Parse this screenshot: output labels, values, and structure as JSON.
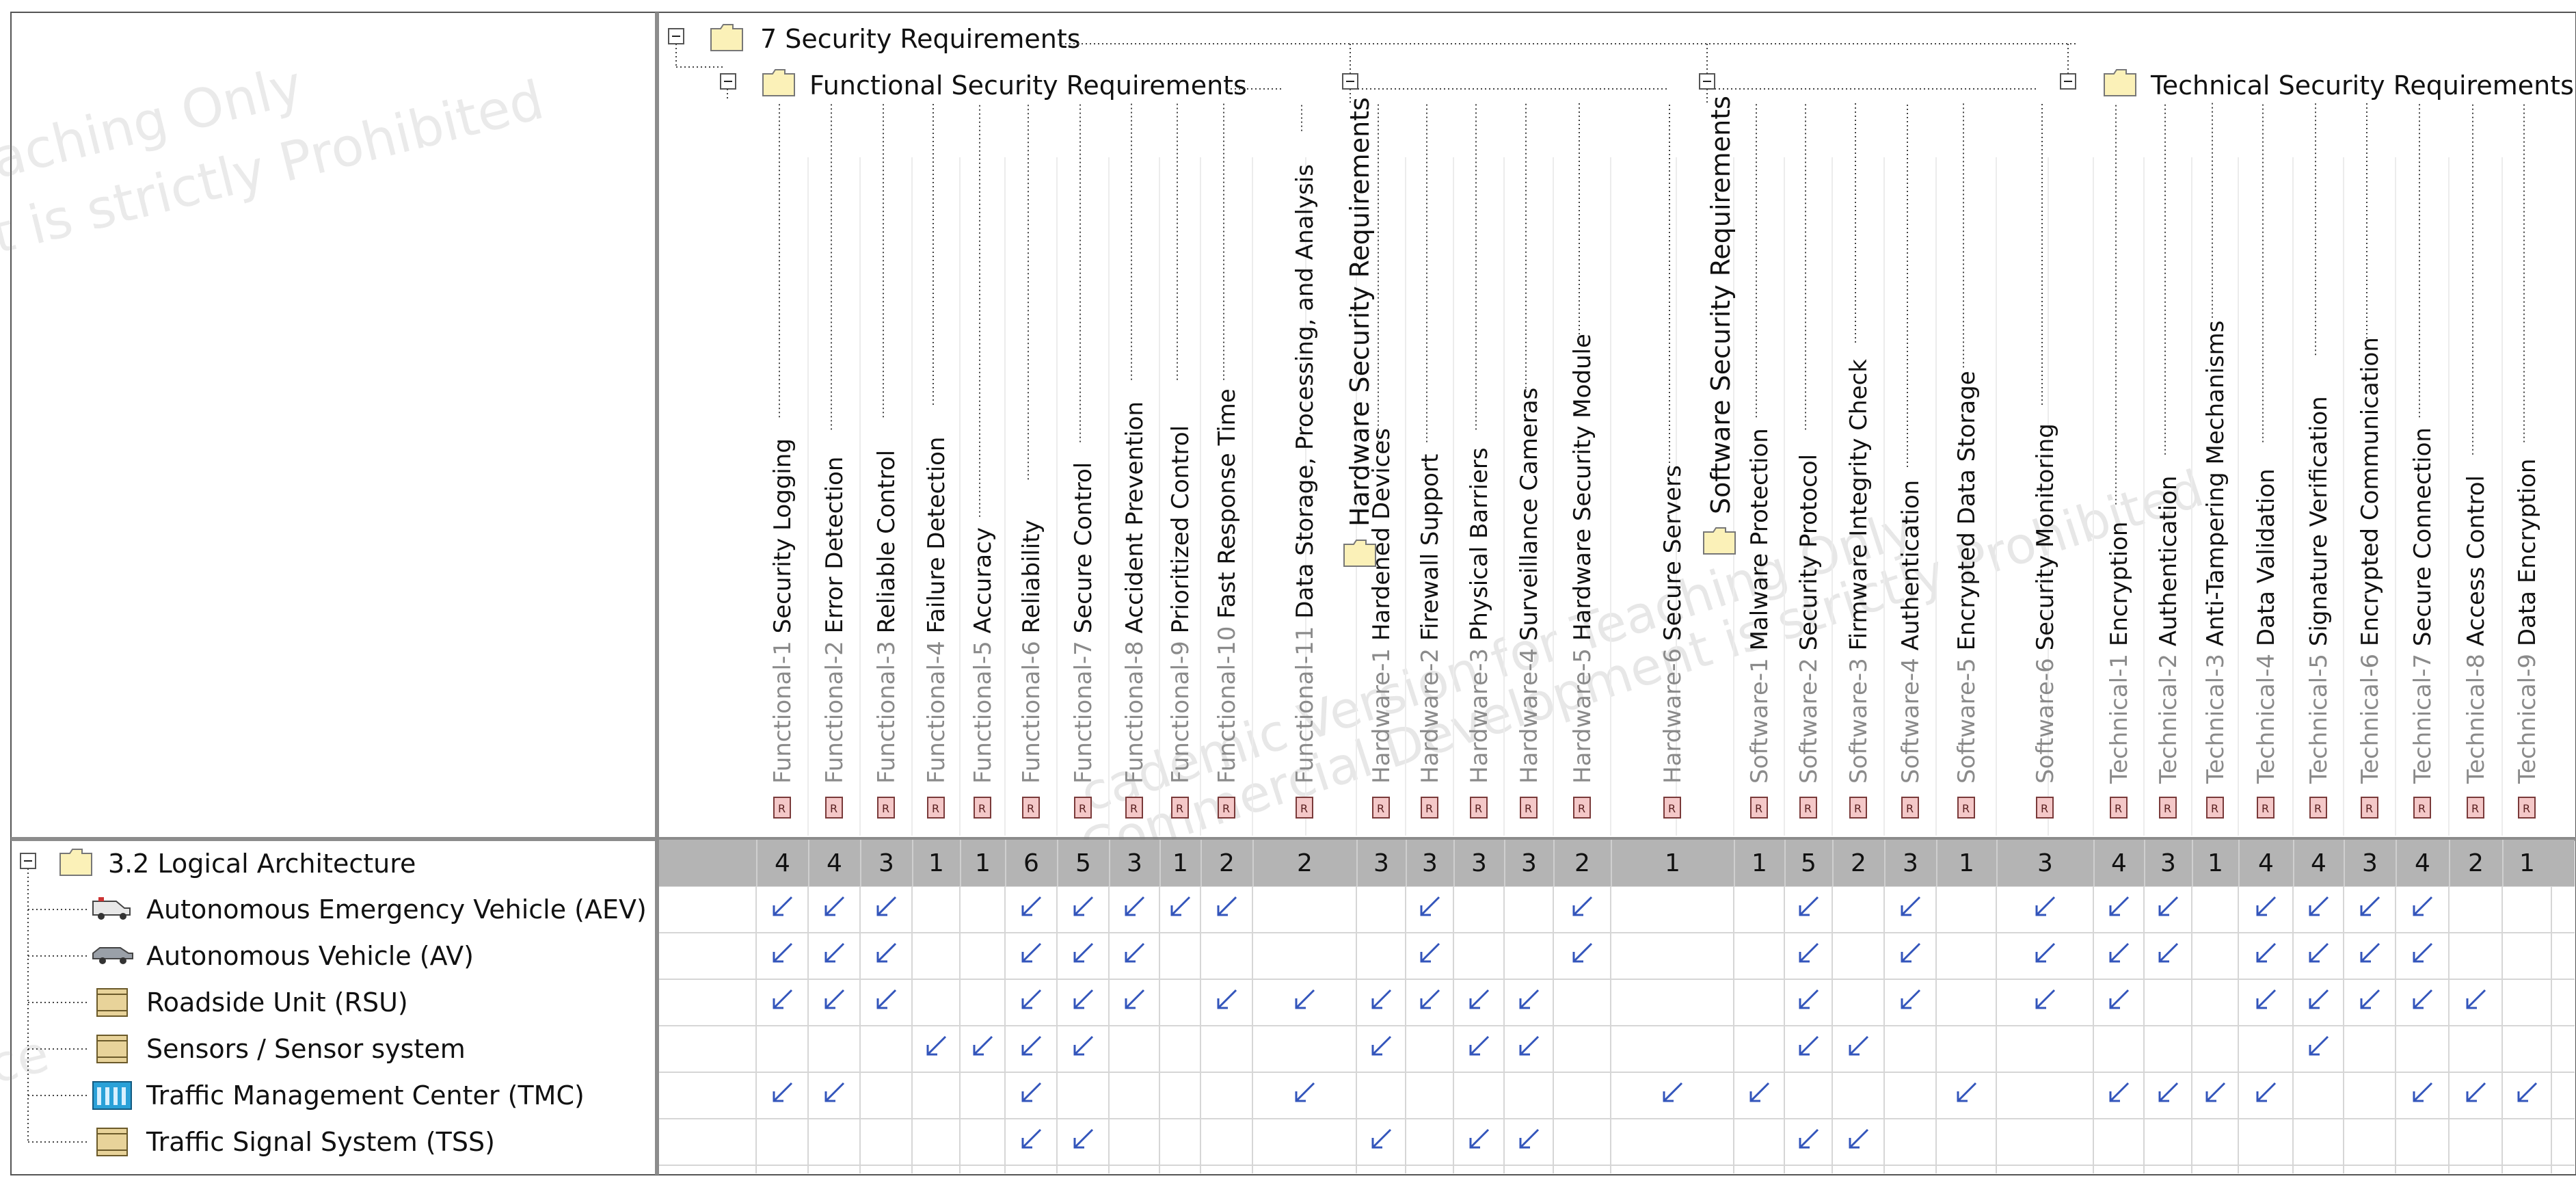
{
  "app": {
    "watermark_left_1": "aching Only",
    "watermark_left_2": "t is strictly Prohibited",
    "watermark_center_1": "cademic Version for Teaching Only",
    "watermark_center_2": "Commercial Development is strictly Prohibited",
    "watermark_row": "ce"
  },
  "matrix": {
    "root_folder": "7 Security Requirements",
    "groups": [
      {
        "label": "Functional Security Requirements",
        "vertical": false
      },
      {
        "label": "Hardware Security Requirements",
        "vertical": true
      },
      {
        "label": "Software Security Requirements",
        "vertical": true
      },
      {
        "label": "Technical Security Requirements",
        "vertical": false
      }
    ],
    "expander_symbol": "⊟",
    "requirement_badge": "R",
    "columns": [
      {
        "id": "Functional-1",
        "name": "Security Logging",
        "group": 0
      },
      {
        "id": "Functional-2",
        "name": "Error Detection",
        "group": 0
      },
      {
        "id": "Functional-3",
        "name": "Reliable Control",
        "group": 0
      },
      {
        "id": "Functional-4",
        "name": "Failure Detection",
        "group": 0
      },
      {
        "id": "Functional-5",
        "name": "Accuracy",
        "group": 0
      },
      {
        "id": "Functional-6",
        "name": "Reliability",
        "group": 0
      },
      {
        "id": "Functional-7",
        "name": "Secure Control",
        "group": 0
      },
      {
        "id": "Functional-8",
        "name": "Accident Prevention",
        "group": 0
      },
      {
        "id": "Functional-9",
        "name": "Prioritized Control",
        "group": 0
      },
      {
        "id": "Functional-10",
        "name": "Fast Response Time",
        "group": 0
      },
      {
        "id": "Functional-11",
        "name": "Data Storage, Processing, and Analysis",
        "group": 0
      },
      {
        "id": "Hardware-1",
        "name": "Hardened Devices",
        "group": 1
      },
      {
        "id": "Hardware-2",
        "name": "Firewall Support",
        "group": 1
      },
      {
        "id": "Hardware-3",
        "name": "Physical Barriers",
        "group": 1
      },
      {
        "id": "Hardware-4",
        "name": "Surveillance Cameras",
        "group": 1
      },
      {
        "id": "Hardware-5",
        "name": "Hardware Security Module",
        "group": 1
      },
      {
        "id": "Hardware-6",
        "name": "Secure Servers",
        "group": 1
      },
      {
        "id": "Software-1",
        "name": "Malware Protection",
        "group": 2
      },
      {
        "id": "Software-2",
        "name": "Security Protocol",
        "group": 2
      },
      {
        "id": "Software-3",
        "name": "Firmware Integrity Check",
        "group": 2
      },
      {
        "id": "Software-4",
        "name": "Authentication",
        "group": 2
      },
      {
        "id": "Software-5",
        "name": "Encrypted Data Storage",
        "group": 2
      },
      {
        "id": "Software-6",
        "name": "Security Monitoring",
        "group": 2
      },
      {
        "id": "Technical-1",
        "name": "Encryption",
        "group": 3
      },
      {
        "id": "Technical-2",
        "name": "Authentication",
        "group": 3
      },
      {
        "id": "Technical-3",
        "name": "Anti-Tampering Mechanisms",
        "group": 3
      },
      {
        "id": "Technical-4",
        "name": "Data Validation",
        "group": 3
      },
      {
        "id": "Technical-5",
        "name": "Signature Verification",
        "group": 3
      },
      {
        "id": "Technical-6",
        "name": "Encrypted Communication",
        "group": 3
      },
      {
        "id": "Technical-7",
        "name": "Secure Connection",
        "group": 3
      },
      {
        "id": "Technical-8",
        "name": "Access Control",
        "group": 3
      },
      {
        "id": "Technical-9",
        "name": "Data Encryption",
        "group": 3
      }
    ],
    "row_root": {
      "label": "3.2 Logical Architecture",
      "counts": [
        "4",
        "4",
        "3",
        "1",
        "1",
        "6",
        "5",
        "3",
        "1",
        "2",
        "2",
        "3",
        "3",
        "3",
        "3",
        "2",
        "1",
        "1",
        "5",
        "2",
        "3",
        "1",
        "3",
        "4",
        "3",
        "1",
        "4",
        "4",
        "3",
        "4",
        "2",
        "1"
      ]
    },
    "rows": [
      {
        "label": "Autonomous  Emergency Vehicle (AEV)",
        "icon": "ambulance-icon",
        "cells": [
          1,
          1,
          1,
          0,
          0,
          1,
          1,
          1,
          1,
          1,
          0,
          0,
          1,
          0,
          0,
          1,
          0,
          0,
          1,
          0,
          1,
          0,
          1,
          1,
          1,
          0,
          1,
          1,
          1,
          1,
          0,
          0
        ]
      },
      {
        "label": "Autonomous  Vehicle (AV)",
        "icon": "car-icon",
        "cells": [
          1,
          1,
          1,
          0,
          0,
          1,
          1,
          1,
          0,
          0,
          0,
          0,
          1,
          0,
          0,
          1,
          0,
          0,
          1,
          0,
          1,
          0,
          1,
          1,
          1,
          0,
          1,
          1,
          1,
          1,
          0,
          0
        ]
      },
      {
        "label": "Roadside Unit (RSU)",
        "icon": "block-icon",
        "cells": [
          1,
          1,
          1,
          0,
          0,
          1,
          1,
          1,
          0,
          1,
          1,
          1,
          1,
          1,
          1,
          0,
          0,
          0,
          1,
          0,
          1,
          0,
          1,
          1,
          0,
          0,
          1,
          1,
          1,
          1,
          1,
          0
        ]
      },
      {
        "label": "Sensors / Sensor system",
        "icon": "block-icon",
        "cells": [
          0,
          0,
          0,
          1,
          1,
          1,
          1,
          0,
          0,
          0,
          0,
          1,
          0,
          1,
          1,
          0,
          0,
          0,
          1,
          1,
          0,
          0,
          0,
          0,
          0,
          0,
          0,
          1,
          0,
          0,
          0,
          0
        ]
      },
      {
        "label": "Traffic Management Center (TMC)",
        "icon": "building-icon",
        "cells": [
          1,
          1,
          0,
          0,
          0,
          1,
          0,
          0,
          0,
          0,
          1,
          0,
          0,
          0,
          0,
          0,
          1,
          1,
          0,
          0,
          0,
          1,
          0,
          1,
          1,
          1,
          1,
          0,
          0,
          1,
          1,
          1
        ]
      },
      {
        "label": "Traffic Signal System (TSS)",
        "icon": "block-icon",
        "cells": [
          0,
          0,
          0,
          0,
          0,
          1,
          1,
          0,
          0,
          0,
          0,
          1,
          0,
          1,
          1,
          0,
          0,
          0,
          1,
          1,
          0,
          0,
          0,
          0,
          0,
          0,
          0,
          0,
          0,
          0,
          0,
          0
        ]
      }
    ],
    "dependency_arrow_color": "#3355bb",
    "count_row_bg": "#b4b4b4",
    "badge_fill": "#f4c8c8",
    "folder_fill": "#fbf1b8"
  }
}
